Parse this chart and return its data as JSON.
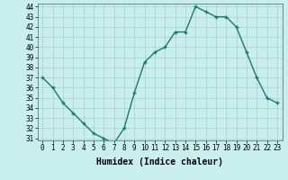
{
  "x": [
    0,
    1,
    2,
    3,
    4,
    5,
    6,
    7,
    8,
    9,
    10,
    11,
    12,
    13,
    14,
    15,
    16,
    17,
    18,
    19,
    20,
    21,
    22,
    23
  ],
  "y": [
    37,
    36,
    34.5,
    33.5,
    32.5,
    31.5,
    31,
    30.5,
    32,
    35.5,
    38.5,
    39.5,
    40,
    41.5,
    41.5,
    44,
    43.5,
    43,
    43,
    42,
    39.5,
    37,
    35,
    34.5
  ],
  "line_color": "#1a7a6e",
  "marker": "+",
  "bg_color": "#c8eeee",
  "grid_color": "#aacccc",
  "xlabel": "Humidex (Indice chaleur)",
  "ylim_min": 30.8,
  "ylim_max": 44.3,
  "xlim_min": -0.5,
  "xlim_max": 23.5,
  "yticks": [
    31,
    32,
    33,
    34,
    35,
    36,
    37,
    38,
    39,
    40,
    41,
    42,
    43,
    44
  ],
  "xticks": [
    0,
    1,
    2,
    3,
    4,
    5,
    6,
    7,
    8,
    9,
    10,
    11,
    12,
    13,
    14,
    15,
    16,
    17,
    18,
    19,
    20,
    21,
    22,
    23
  ],
  "tick_fontsize": 5.5,
  "xlabel_fontsize": 7,
  "linewidth": 1.0,
  "markersize": 3.5,
  "markeredgewidth": 1.0
}
